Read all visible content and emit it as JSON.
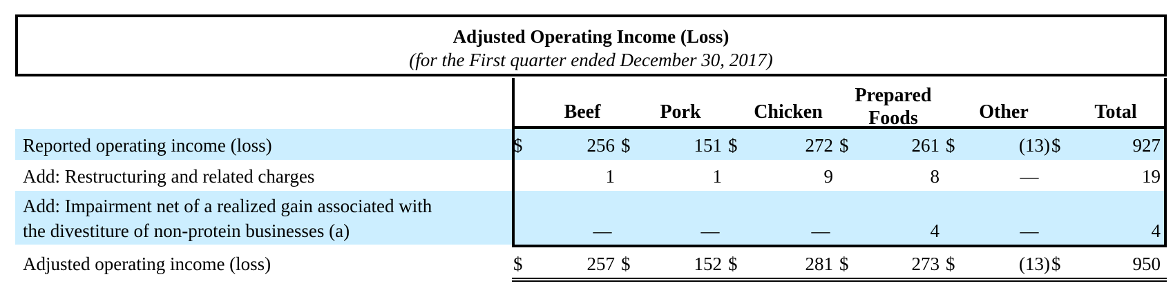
{
  "table": {
    "title": "Adjusted Operating Income (Loss)",
    "subtitle": "(for the First quarter ended December 30, 2017)",
    "columns": [
      "Beef",
      "Pork",
      "Chicken",
      "Prepared Foods",
      "Other",
      "Total"
    ],
    "currency_symbol": "$",
    "row_highlight_color": "#cceeff",
    "rows": [
      {
        "label": "Reported operating income (loss)",
        "values": [
          "256",
          "151",
          "272",
          "261",
          "(13)",
          "927"
        ],
        "show_currency": true
      },
      {
        "label": "Add: Restructuring and related charges",
        "values": [
          "1",
          "1",
          "9",
          "8",
          "—",
          "19"
        ],
        "show_currency": false
      },
      {
        "label_line1": "Add: Impairment net of a realized gain associated with",
        "label_line2": "the divestiture of non-protein businesses (a)",
        "values": [
          "—",
          "—",
          "—",
          "4",
          "—",
          "4"
        ],
        "show_currency": false
      },
      {
        "label": "Adjusted operating income (loss)",
        "values": [
          "257",
          "152",
          "281",
          "273",
          "(13)",
          "950"
        ],
        "show_currency": true
      }
    ]
  }
}
